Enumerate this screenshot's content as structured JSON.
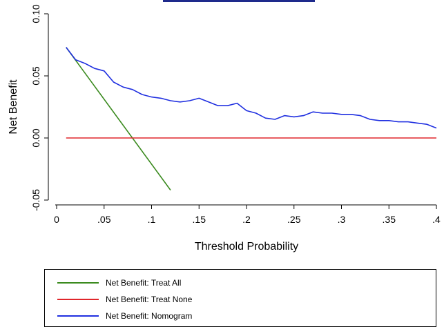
{
  "chart_data": {
    "type": "line",
    "xlabel": "Threshold Probability",
    "ylabel": "Net Benefit",
    "xlim": [
      0,
      0.4
    ],
    "ylim": [
      -0.05,
      0.1
    ],
    "x_ticks": [
      0,
      0.05,
      0.1,
      0.15,
      0.2,
      0.25,
      0.3,
      0.35,
      0.4
    ],
    "x_tick_labels": [
      "0",
      ".05",
      ".1",
      ".15",
      ".2",
      ".25",
      ".3",
      ".35",
      ".4"
    ],
    "y_ticks": [
      -0.05,
      0,
      0.05,
      0.1
    ],
    "y_tick_labels": [
      "-0.05",
      "0.00",
      "0.05",
      "0.10"
    ],
    "grid": false,
    "legend_position": "bottom",
    "series": [
      {
        "name": "Net Benefit: Treat All",
        "color": "#3a8a1e",
        "x": [
          0.01,
          0.12
        ],
        "y": [
          0.073,
          -0.042
        ]
      },
      {
        "name": "Net Benefit: Treat None",
        "color": "#e0262b",
        "x": [
          0.01,
          0.4
        ],
        "y": [
          0,
          0
        ]
      },
      {
        "name": "Net Benefit: Nomogram",
        "color": "#1f2fe0",
        "x": [
          0.01,
          0.02,
          0.03,
          0.04,
          0.05,
          0.06,
          0.07,
          0.08,
          0.09,
          0.1,
          0.11,
          0.12,
          0.13,
          0.14,
          0.15,
          0.16,
          0.17,
          0.18,
          0.19,
          0.2,
          0.21,
          0.22,
          0.23,
          0.24,
          0.25,
          0.26,
          0.27,
          0.28,
          0.29,
          0.3,
          0.31,
          0.32,
          0.33,
          0.34,
          0.35,
          0.36,
          0.37,
          0.38,
          0.39,
          0.4
        ],
        "y": [
          0.073,
          0.063,
          0.06,
          0.056,
          0.054,
          0.045,
          0.041,
          0.039,
          0.035,
          0.033,
          0.032,
          0.03,
          0.029,
          0.03,
          0.032,
          0.029,
          0.026,
          0.026,
          0.028,
          0.022,
          0.02,
          0.016,
          0.015,
          0.018,
          0.017,
          0.018,
          0.021,
          0.02,
          0.02,
          0.019,
          0.019,
          0.018,
          0.015,
          0.014,
          0.014,
          0.013,
          0.013,
          0.012,
          0.011,
          0.008
        ]
      }
    ]
  }
}
